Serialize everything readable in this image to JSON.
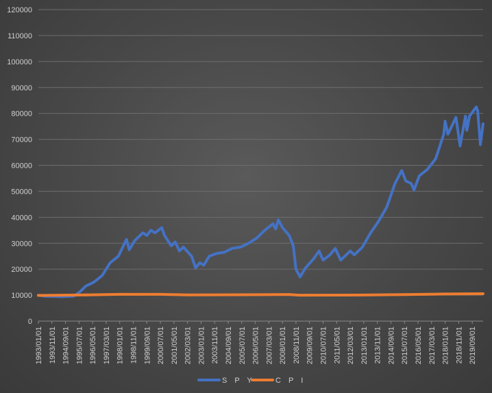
{
  "chart_data": {
    "type": "line",
    "title": "",
    "xlabel": "",
    "ylabel": "",
    "ylim": [
      0,
      120000
    ],
    "y_ticks": [
      0,
      10000,
      20000,
      30000,
      40000,
      50000,
      60000,
      70000,
      80000,
      90000,
      100000,
      110000,
      120000
    ],
    "x_range": [
      "1993/01",
      "2020/05"
    ],
    "x_tick_labels": [
      "1993/01/01",
      "1993/11/01",
      "1994/09/01",
      "1995/07/01",
      "1996/05/01",
      "1997/03/01",
      "1998/01/01",
      "1998/11/01",
      "1999/09/01",
      "2000/07/01",
      "2001/05/01",
      "2002/03/01",
      "2003/01/01",
      "2003/11/01",
      "2004/09/01",
      "2005/07/01",
      "2006/05/01",
      "2007/03/01",
      "2008/01/01",
      "2008/11/01",
      "2009/09/01",
      "2010/07/01",
      "2011/05/01",
      "2012/03/01",
      "2013/01/01",
      "2013/11/01",
      "2014/09/01",
      "2015/07/01",
      "2016/05/01",
      "2017/03/01",
      "2018/01/01",
      "2018/11/01",
      "2019/09/01"
    ],
    "grid": true,
    "legend": "bottom",
    "series": [
      {
        "name": "S P Y",
        "color": "#4472c4",
        "x": [
          "1993/01",
          "1993/06",
          "1994/01",
          "1994/06",
          "1994/10",
          "1995/03",
          "1995/07",
          "1995/12",
          "1996/06",
          "1996/12",
          "1997/06",
          "1997/12",
          "1998/06",
          "1998/08",
          "1998/12",
          "1999/06",
          "1999/09",
          "1999/12",
          "2000/03",
          "2000/08",
          "2000/10",
          "2001/03",
          "2001/06",
          "2001/09",
          "2001/12",
          "2002/06",
          "2002/09",
          "2002/12",
          "2003/03",
          "2003/07",
          "2003/12",
          "2004/06",
          "2004/12",
          "2005/06",
          "2005/12",
          "2006/06",
          "2006/12",
          "2007/06",
          "2007/08",
          "2007/10",
          "2008/01",
          "2008/06",
          "2008/09",
          "2008/11",
          "2009/02",
          "2009/06",
          "2009/12",
          "2010/04",
          "2010/07",
          "2010/12",
          "2011/04",
          "2011/08",
          "2011/12",
          "2012/03",
          "2012/06",
          "2012/12",
          "2013/06",
          "2013/12",
          "2014/06",
          "2014/12",
          "2015/05",
          "2015/08",
          "2015/12",
          "2016/02",
          "2016/06",
          "2016/12",
          "2017/06",
          "2017/12",
          "2018/01",
          "2018/03",
          "2018/09",
          "2018/12",
          "2019/04",
          "2019/05",
          "2019/07",
          "2019/12",
          "2020/01",
          "2020/03",
          "2020/05"
        ],
        "values": [
          10000,
          9600,
          9500,
          9400,
          9500,
          9600,
          11000,
          13500,
          15000,
          17500,
          22500,
          25000,
          31500,
          27500,
          31000,
          34000,
          33000,
          35000,
          34000,
          36000,
          33000,
          29000,
          30500,
          27000,
          28500,
          25000,
          20500,
          22500,
          21500,
          25000,
          26000,
          26500,
          28000,
          28500,
          30000,
          32000,
          35000,
          37500,
          35500,
          39000,
          36000,
          33000,
          29000,
          20000,
          17000,
          20500,
          24000,
          27000,
          23500,
          25500,
          28000,
          23500,
          25500,
          27000,
          25500,
          28500,
          34000,
          38500,
          44000,
          53000,
          58000,
          54000,
          53000,
          50500,
          56000,
          58500,
          62500,
          72000,
          77000,
          72000,
          78500,
          67500,
          79000,
          73500,
          79000,
          82500,
          81000,
          68000,
          76000
        ]
      },
      {
        "name": "C P I",
        "color": "#ed7d31",
        "x": [
          "1993/01",
          "1995/07",
          "1998/01",
          "2000/07",
          "2002/03",
          "2005/07",
          "2008/06",
          "2009/01",
          "2013/01",
          "2015/07",
          "2017/12",
          "2020/05"
        ],
        "values": [
          9900,
          10050,
          10300,
          10300,
          10100,
          10150,
          10250,
          10000,
          10050,
          10200,
          10450,
          10550
        ]
      }
    ]
  }
}
